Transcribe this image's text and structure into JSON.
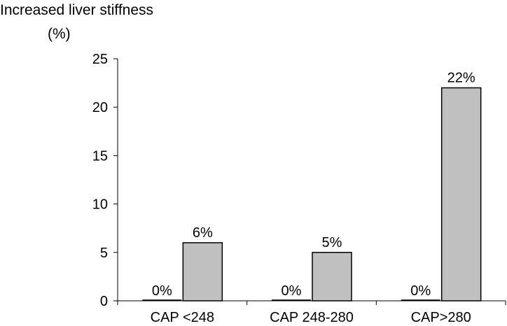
{
  "chart_data": {
    "type": "bar",
    "title": "Increased liver stiffness",
    "ylabel": "(%)",
    "xlabel": "",
    "categories": [
      "CAP <248",
      "CAP 248-280",
      "CAP>280"
    ],
    "series": [
      {
        "values": [
          0,
          0,
          0
        ],
        "labels": [
          "0%",
          "0%",
          "0%"
        ],
        "color": "#ffffff"
      },
      {
        "values": [
          6,
          5,
          22
        ],
        "labels": [
          "6%",
          "5%",
          "22%"
        ],
        "color": "#c0c0c0"
      }
    ],
    "ylim": [
      0,
      25
    ],
    "yticks": [
      0,
      5,
      10,
      15,
      20,
      25
    ],
    "grid": false
  }
}
